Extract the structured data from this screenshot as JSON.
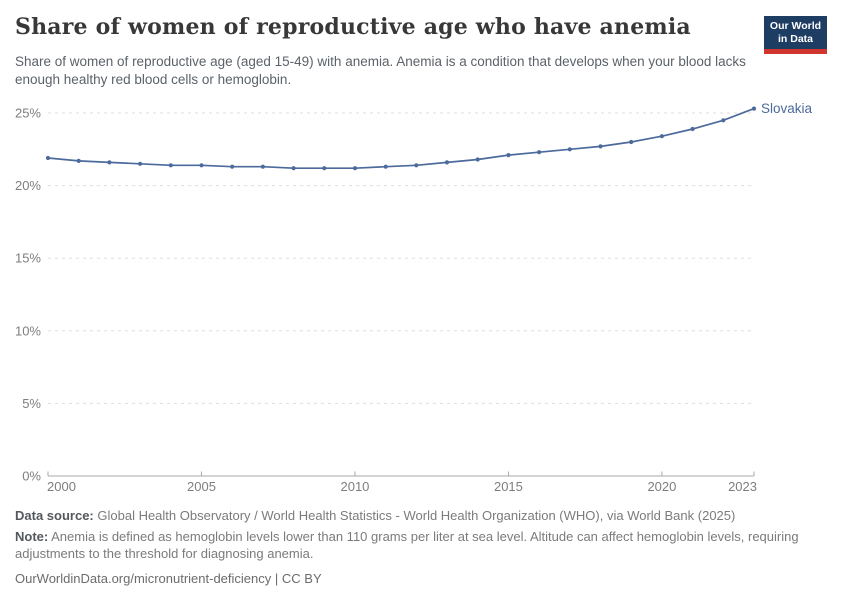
{
  "header": {
    "title": "Share of women of reproductive age who have anemia",
    "subtitle": "Share of women of reproductive age (aged 15-49) with anemia. Anemia is a condition that develops when your blood lacks enough healthy red blood cells or hemoglobin.",
    "logo": {
      "line1": "Our World",
      "line2": "in Data",
      "bg_color": "#1d3d63",
      "accent_color": "#d0362e"
    }
  },
  "chart_data": {
    "type": "line",
    "title": "Share of women of reproductive age who have anemia",
    "xlabel": "",
    "ylabel": "",
    "x": [
      2000,
      2001,
      2002,
      2003,
      2004,
      2005,
      2006,
      2007,
      2008,
      2009,
      2010,
      2011,
      2012,
      2013,
      2014,
      2015,
      2016,
      2017,
      2018,
      2019,
      2020,
      2021,
      2022,
      2023
    ],
    "series": [
      {
        "name": "Slovakia",
        "color": "#4c6a9c",
        "values": [
          21.9,
          21.7,
          21.6,
          21.5,
          21.4,
          21.4,
          21.3,
          21.3,
          21.2,
          21.2,
          21.2,
          21.3,
          21.4,
          21.6,
          21.8,
          22.1,
          22.3,
          22.5,
          22.7,
          23.0,
          23.4,
          23.9,
          24.5,
          25.3
        ]
      }
    ],
    "ylim": [
      0,
      25
    ],
    "xlim": [
      2000,
      2023
    ],
    "yticks": [
      "0%",
      "5%",
      "10%",
      "15%",
      "20%",
      "25%"
    ],
    "xticks": [
      2000,
      2005,
      2010,
      2015,
      2020,
      2023
    ],
    "grid": "horizontal-dashed",
    "legend": "line-end-label"
  },
  "footer": {
    "data_source_label": "Data source:",
    "data_source": "Global Health Observatory / World Health Statistics - World Health Organization (WHO), via World Bank (2025)",
    "note_label": "Note:",
    "note": "Anemia is defined as hemoglobin levels lower than 110 grams per liter at sea level. Altitude can affect hemoglobin levels, requiring adjustments to the threshold for diagnosing anemia.",
    "url": "OurWorldinData.org/micronutrient-deficiency",
    "divider": "|",
    "license": "CC BY"
  }
}
